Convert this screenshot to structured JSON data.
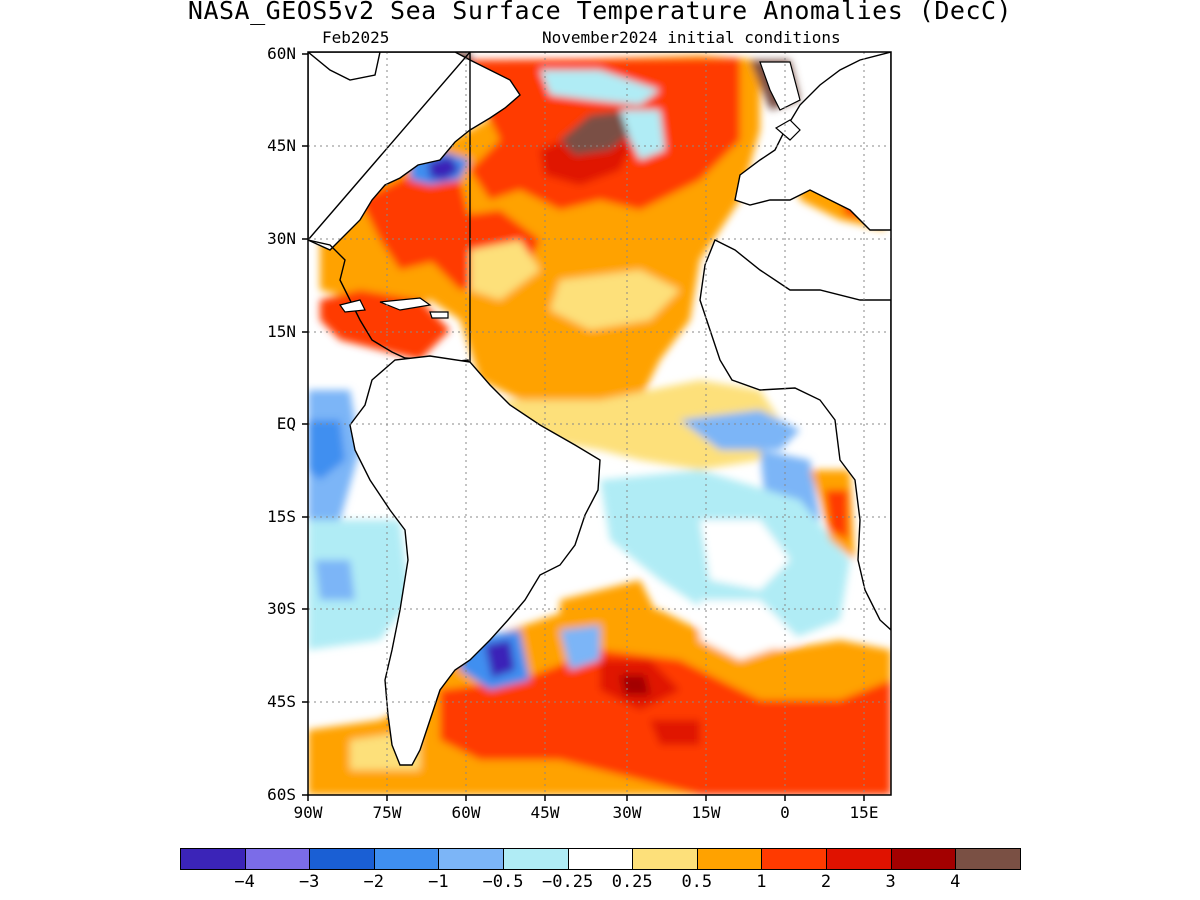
{
  "header": {
    "title": "NASA_GEOS5v2 Sea Surface Temperature Anomalies (DecC)",
    "forecast_month": "Feb2025",
    "init_conditions": "November2024 initial conditions"
  },
  "map": {
    "lat_labels": [
      "60N",
      "45N",
      "30N",
      "15N",
      "EQ",
      "15S",
      "30S",
      "45S",
      "60S"
    ],
    "lon_labels": [
      "90W",
      "75W",
      "60W",
      "45W",
      "30W",
      "15W",
      "0",
      "15E"
    ],
    "lat_range": [
      -60,
      60
    ],
    "lon_range": [
      -90,
      20
    ],
    "grid": "dotted, 15 degree spacing"
  },
  "colorbar": {
    "colors": [
      "#3b24b8",
      "#7b6ce8",
      "#1a5fd4",
      "#3f8ff0",
      "#7cb5f7",
      "#b0ecf5",
      "#ffffff",
      "#fde07a",
      "#ffa200",
      "#ff3a00",
      "#e01200",
      "#a30000",
      "#7a5044"
    ],
    "labels": [
      "−4",
      "−3",
      "−2",
      "−1",
      "−0.5",
      "−0.25",
      "0.25",
      "0.5",
      "1",
      "2",
      "3",
      "4"
    ]
  }
}
